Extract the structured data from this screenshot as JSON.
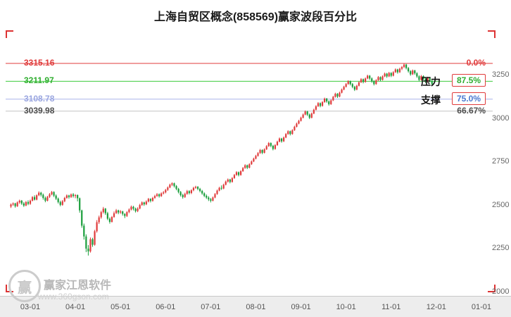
{
  "title": "上海自贸区概念(858569)赢家波段百分比",
  "watermark": {
    "logo_text": "赢",
    "brand": "赢家江恩软件",
    "url": "www.360gson.com"
  },
  "chart_data": {
    "type": "candlestick",
    "title": "上海自贸区概念(858569)赢家波段百分比",
    "ylim": [
      2000,
      3500
    ],
    "y_tick_labels": [
      "3250",
      "3000",
      "2750",
      "2500",
      "2250",
      "2000"
    ],
    "y_tick_values": [
      3250,
      3000,
      2750,
      2500,
      2250,
      2000
    ],
    "x_tick_labels": [
      "03-01",
      "04-01",
      "05-01",
      "06-01",
      "07-01",
      "08-01",
      "09-01",
      "10-01",
      "11-01",
      "12-01",
      "01-01"
    ],
    "x_tick_indices": [
      9,
      30,
      51,
      72,
      93,
      114,
      135,
      156,
      177,
      198,
      219
    ],
    "grid": false,
    "legend": "none",
    "up_color": "#e03b3b",
    "down_color": "#1a9e3c",
    "annotations": {
      "pressure": "压力",
      "support": "支撑"
    },
    "levels": [
      {
        "price": "3315.16",
        "value": 3315.16,
        "pct": "0.0%",
        "label_color": "#e03b3b",
        "line_color": "#e03b3b",
        "pct_color": "#e03b3b",
        "boxed": false,
        "line": true
      },
      {
        "price": "3211.97",
        "value": 3211.97,
        "pct": "87.5%",
        "label_color": "#2fae2f",
        "line_color": "#3ecc3e",
        "pct_color": "#2fae2f",
        "boxed": true,
        "line": true
      },
      {
        "price": "3108.78",
        "value": 3108.78,
        "pct": "75.0%",
        "label_color": "#9aa6e0",
        "line_color": "#aab4ea",
        "pct_color": "#4b79d0",
        "boxed": true,
        "line": true
      },
      {
        "price": "3039.98",
        "value": 3039.98,
        "pct": "66.67%",
        "label_color": "#4d4d4d",
        "line_color": "#c4c4c4",
        "pct_color": "#4d4d4d",
        "boxed": false,
        "line": true
      }
    ],
    "candles": [
      [
        2490,
        2508,
        2482,
        2502
      ],
      [
        2502,
        2514,
        2494,
        2508
      ],
      [
        2508,
        2512,
        2484,
        2492
      ],
      [
        2492,
        2520,
        2488,
        2514
      ],
      [
        2514,
        2530,
        2506,
        2524
      ],
      [
        2524,
        2528,
        2500,
        2508
      ],
      [
        2508,
        2516,
        2488,
        2496
      ],
      [
        2496,
        2522,
        2492,
        2516
      ],
      [
        2516,
        2526,
        2498,
        2506
      ],
      [
        2506,
        2530,
        2500,
        2524
      ],
      [
        2524,
        2550,
        2520,
        2545
      ],
      [
        2545,
        2555,
        2525,
        2530
      ],
      [
        2530,
        2560,
        2526,
        2555
      ],
      [
        2555,
        2578,
        2550,
        2570
      ],
      [
        2570,
        2575,
        2548,
        2558
      ],
      [
        2558,
        2565,
        2530,
        2540
      ],
      [
        2540,
        2548,
        2515,
        2524
      ],
      [
        2524,
        2552,
        2520,
        2546
      ],
      [
        2546,
        2568,
        2540,
        2561
      ],
      [
        2561,
        2580,
        2555,
        2574
      ],
      [
        2574,
        2578,
        2545,
        2553
      ],
      [
        2553,
        2560,
        2528,
        2536
      ],
      [
        2536,
        2542,
        2508,
        2516
      ],
      [
        2516,
        2524,
        2492,
        2500
      ],
      [
        2500,
        2528,
        2495,
        2521
      ],
      [
        2521,
        2546,
        2515,
        2540
      ],
      [
        2540,
        2560,
        2535,
        2554
      ],
      [
        2554,
        2558,
        2536,
        2545
      ],
      [
        2545,
        2566,
        2540,
        2560
      ],
      [
        2560,
        2568,
        2542,
        2551
      ],
      [
        2551,
        2562,
        2538,
        2556
      ],
      [
        2556,
        2560,
        2520,
        2538
      ],
      [
        2538,
        2542,
        2455,
        2468
      ],
      [
        2468,
        2472,
        2368,
        2380
      ],
      [
        2380,
        2392,
        2300,
        2318
      ],
      [
        2318,
        2330,
        2228,
        2248
      ],
      [
        2248,
        2268,
        2208,
        2232
      ],
      [
        2232,
        2312,
        2225,
        2302
      ],
      [
        2302,
        2310,
        2258,
        2270
      ],
      [
        2270,
        2356,
        2265,
        2348
      ],
      [
        2348,
        2412,
        2340,
        2400
      ],
      [
        2400,
        2438,
        2390,
        2428
      ],
      [
        2428,
        2466,
        2420,
        2458
      ],
      [
        2458,
        2488,
        2450,
        2478
      ],
      [
        2478,
        2482,
        2442,
        2452
      ],
      [
        2452,
        2460,
        2412,
        2420
      ],
      [
        2420,
        2428,
        2392,
        2402
      ],
      [
        2402,
        2436,
        2398,
        2430
      ],
      [
        2430,
        2462,
        2425,
        2452
      ],
      [
        2452,
        2476,
        2448,
        2468
      ],
      [
        2468,
        2472,
        2446,
        2456
      ],
      [
        2456,
        2470,
        2448,
        2462
      ],
      [
        2462,
        2466,
        2438,
        2448
      ],
      [
        2448,
        2452,
        2424,
        2436
      ],
      [
        2436,
        2464,
        2430,
        2458
      ],
      [
        2458,
        2480,
        2452,
        2473
      ],
      [
        2473,
        2496,
        2468,
        2489
      ],
      [
        2489,
        2494,
        2468,
        2478
      ],
      [
        2478,
        2484,
        2456,
        2464
      ],
      [
        2464,
        2486,
        2458,
        2479
      ],
      [
        2479,
        2506,
        2474,
        2499
      ],
      [
        2499,
        2520,
        2494,
        2514
      ],
      [
        2514,
        2518,
        2494,
        2503
      ],
      [
        2503,
        2526,
        2498,
        2519
      ],
      [
        2519,
        2540,
        2514,
        2534
      ],
      [
        2534,
        2538,
        2514,
        2523
      ],
      [
        2523,
        2546,
        2518,
        2540
      ],
      [
        2540,
        2558,
        2534,
        2551
      ],
      [
        2551,
        2568,
        2546,
        2561
      ],
      [
        2561,
        2566,
        2542,
        2550
      ],
      [
        2550,
        2572,
        2546,
        2566
      ],
      [
        2566,
        2580,
        2560,
        2572
      ],
      [
        2572,
        2592,
        2566,
        2586
      ],
      [
        2586,
        2606,
        2580,
        2600
      ],
      [
        2600,
        2622,
        2596,
        2616
      ],
      [
        2616,
        2630,
        2608,
        2624
      ],
      [
        2624,
        2628,
        2600,
        2608
      ],
      [
        2608,
        2614,
        2584,
        2592
      ],
      [
        2592,
        2598,
        2566,
        2574
      ],
      [
        2574,
        2580,
        2548,
        2556
      ],
      [
        2556,
        2564,
        2536,
        2545
      ],
      [
        2545,
        2570,
        2540,
        2563
      ],
      [
        2563,
        2586,
        2558,
        2579
      ],
      [
        2579,
        2584,
        2560,
        2568
      ],
      [
        2568,
        2590,
        2562,
        2584
      ],
      [
        2584,
        2604,
        2578,
        2598
      ],
      [
        2598,
        2610,
        2592,
        2604
      ],
      [
        2604,
        2608,
        2584,
        2592
      ],
      [
        2592,
        2598,
        2572,
        2580
      ],
      [
        2580,
        2586,
        2558,
        2566
      ],
      [
        2566,
        2572,
        2544,
        2552
      ],
      [
        2552,
        2560,
        2534,
        2542
      ],
      [
        2542,
        2550,
        2522,
        2532
      ],
      [
        2532,
        2540,
        2514,
        2524
      ],
      [
        2524,
        2548,
        2520,
        2542
      ],
      [
        2542,
        2568,
        2538,
        2562
      ],
      [
        2562,
        2588,
        2558,
        2582
      ],
      [
        2582,
        2604,
        2578,
        2598
      ],
      [
        2598,
        2612,
        2586,
        2594
      ],
      [
        2594,
        2622,
        2590,
        2616
      ],
      [
        2616,
        2640,
        2612,
        2634
      ],
      [
        2634,
        2652,
        2628,
        2646
      ],
      [
        2646,
        2650,
        2624,
        2632
      ],
      [
        2632,
        2660,
        2628,
        2654
      ],
      [
        2654,
        2678,
        2650,
        2672
      ],
      [
        2672,
        2694,
        2668,
        2688
      ],
      [
        2688,
        2692,
        2664,
        2672
      ],
      [
        2672,
        2700,
        2668,
        2694
      ],
      [
        2694,
        2718,
        2690,
        2712
      ],
      [
        2712,
        2734,
        2708,
        2728
      ],
      [
        2728,
        2732,
        2706,
        2714
      ],
      [
        2714,
        2740,
        2710,
        2734
      ],
      [
        2734,
        2756,
        2730,
        2750
      ],
      [
        2750,
        2772,
        2746,
        2766
      ],
      [
        2766,
        2788,
        2762,
        2782
      ],
      [
        2782,
        2804,
        2778,
        2798
      ],
      [
        2798,
        2822,
        2794,
        2816
      ],
      [
        2816,
        2820,
        2792,
        2800
      ],
      [
        2800,
        2826,
        2796,
        2820
      ],
      [
        2820,
        2844,
        2816,
        2838
      ],
      [
        2838,
        2862,
        2834,
        2856
      ],
      [
        2856,
        2860,
        2832,
        2840
      ],
      [
        2840,
        2846,
        2814,
        2822
      ],
      [
        2822,
        2850,
        2818,
        2844
      ],
      [
        2844,
        2870,
        2840,
        2864
      ],
      [
        2864,
        2888,
        2860,
        2882
      ],
      [
        2882,
        2886,
        2858,
        2866
      ],
      [
        2866,
        2894,
        2862,
        2888
      ],
      [
        2888,
        2914,
        2884,
        2908
      ],
      [
        2908,
        2930,
        2904,
        2924
      ],
      [
        2924,
        2928,
        2900,
        2908
      ],
      [
        2908,
        2936,
        2904,
        2930
      ],
      [
        2930,
        2956,
        2926,
        2950
      ],
      [
        2950,
        2974,
        2946,
        2968
      ],
      [
        2968,
        2990,
        2964,
        2984
      ],
      [
        2984,
        3008,
        2980,
        3002
      ],
      [
        3002,
        3026,
        2998,
        3020
      ],
      [
        3020,
        3044,
        3016,
        3038
      ],
      [
        3038,
        3042,
        3012,
        3020
      ],
      [
        3020,
        3026,
        2994,
        3002
      ],
      [
        3002,
        3032,
        2998,
        3026
      ],
      [
        3026,
        3054,
        3022,
        3048
      ],
      [
        3048,
        3074,
        3044,
        3068
      ],
      [
        3068,
        3092,
        3064,
        3086
      ],
      [
        3086,
        3090,
        3062,
        3070
      ],
      [
        3070,
        3098,
        3066,
        3092
      ],
      [
        3092,
        3118,
        3088,
        3112
      ],
      [
        3112,
        3116,
        3088,
        3096
      ],
      [
        3096,
        3102,
        3072,
        3080
      ],
      [
        3080,
        3108,
        3076,
        3102
      ],
      [
        3102,
        3128,
        3098,
        3122
      ],
      [
        3122,
        3146,
        3118,
        3140
      ],
      [
        3140,
        3144,
        3116,
        3124
      ],
      [
        3124,
        3152,
        3120,
        3146
      ],
      [
        3146,
        3170,
        3142,
        3164
      ],
      [
        3164,
        3186,
        3160,
        3180
      ],
      [
        3180,
        3202,
        3176,
        3196
      ],
      [
        3196,
        3218,
        3192,
        3212
      ],
      [
        3212,
        3216,
        3188,
        3196
      ],
      [
        3196,
        3202,
        3172,
        3180
      ],
      [
        3180,
        3186,
        3156,
        3164
      ],
      [
        3164,
        3192,
        3160,
        3186
      ],
      [
        3186,
        3212,
        3182,
        3206
      ],
      [
        3206,
        3230,
        3202,
        3224
      ],
      [
        3224,
        3228,
        3200,
        3208
      ],
      [
        3208,
        3234,
        3204,
        3228
      ],
      [
        3228,
        3250,
        3224,
        3244
      ],
      [
        3244,
        3248,
        3220,
        3228
      ],
      [
        3228,
        3234,
        3204,
        3212
      ],
      [
        3212,
        3218,
        3188,
        3196
      ],
      [
        3196,
        3224,
        3192,
        3218
      ],
      [
        3218,
        3242,
        3214,
        3236
      ],
      [
        3236,
        3240,
        3212,
        3220
      ],
      [
        3220,
        3246,
        3216,
        3240
      ],
      [
        3240,
        3262,
        3236,
        3256
      ],
      [
        3256,
        3260,
        3232,
        3240
      ],
      [
        3240,
        3266,
        3236,
        3260
      ],
      [
        3260,
        3264,
        3236,
        3244
      ],
      [
        3244,
        3270,
        3240,
        3264
      ],
      [
        3264,
        3286,
        3260,
        3280
      ],
      [
        3280,
        3284,
        3256,
        3264
      ],
      [
        3264,
        3290,
        3260,
        3284
      ],
      [
        3284,
        3300,
        3276,
        3294
      ],
      [
        3294,
        3315,
        3288,
        3308
      ],
      [
        3308,
        3312,
        3280,
        3288
      ],
      [
        3288,
        3294,
        3262,
        3270
      ],
      [
        3270,
        3276,
        3244,
        3252
      ],
      [
        3252,
        3280,
        3248,
        3274
      ],
      [
        3274,
        3278,
        3250,
        3258
      ],
      [
        3258,
        3264,
        3232,
        3240
      ],
      [
        3240,
        3246,
        3212,
        3220
      ],
      [
        3220,
        3248,
        3216,
        3242
      ],
      [
        3242,
        3246,
        3218,
        3226
      ],
      [
        3226,
        3232,
        3202,
        3210
      ],
      [
        3210,
        3238,
        3206,
        3232
      ],
      [
        3232,
        3236,
        3206,
        3214
      ],
      [
        3214,
        3220,
        3188,
        3196
      ]
    ]
  }
}
